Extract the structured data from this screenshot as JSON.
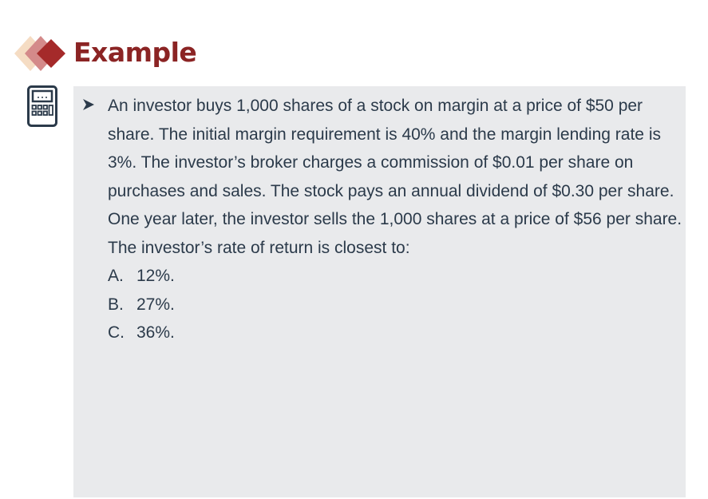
{
  "header": {
    "title": "Example",
    "accent_color": "#8B2424",
    "deco_icon": "overlapping-diamonds-icon"
  },
  "sidebar": {
    "icon": "calculator-icon"
  },
  "question": {
    "bullet_icon": "arrow-bullet-icon",
    "text": "An investor buys 1,000 shares of a stock on margin at a price of $50 per share. The initial margin requirement is 40% and the margin lending rate is 3%. The investor’s broker charges a commission of $0.01 per share on purchases and sales. The stock pays an annual dividend of $0.30 per share. One year later, the investor sells the 1,000 shares at a price of $56 per share. The investor’s rate of return is closest to:",
    "options": [
      {
        "letter": "A.",
        "value": "12%."
      },
      {
        "letter": "B.",
        "value": "27%."
      },
      {
        "letter": "C.",
        "value": "36%."
      }
    ]
  },
  "colors": {
    "text": "#2b3a4a",
    "box_background": "#E9EAEC"
  }
}
